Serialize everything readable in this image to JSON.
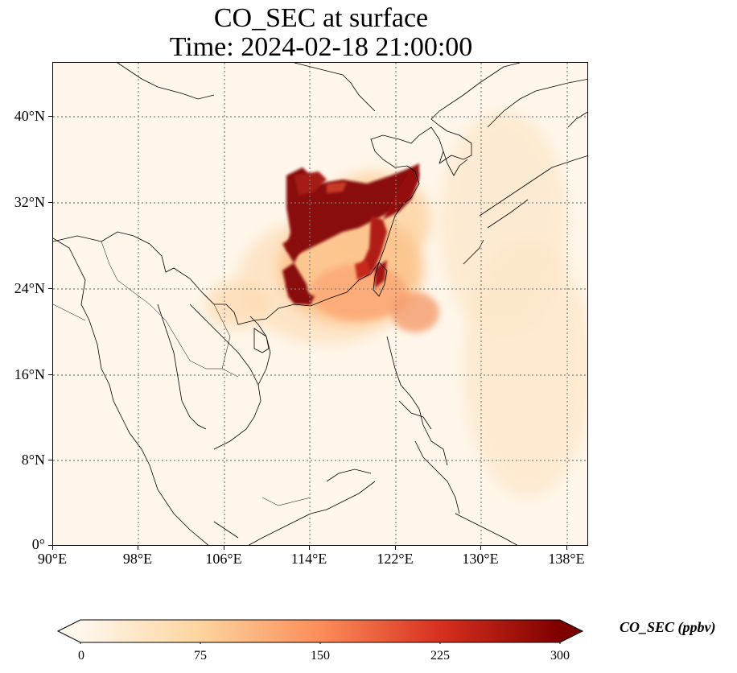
{
  "title": {
    "line1": "CO_SEC at surface",
    "line2": "Time: 2024-02-18 21:00:00"
  },
  "map": {
    "lon_range": [
      90,
      140
    ],
    "lat_range": [
      0,
      45
    ],
    "lat_ticks": [
      "40°N",
      "32°N",
      "24°N",
      "16°N",
      "8°N",
      "0°"
    ],
    "lon_ticks": [
      "90°E",
      "98°E",
      "106°E",
      "114°E",
      "122°E",
      "130°E",
      "138°E"
    ],
    "gridlines": "dotted grey",
    "coastlines": true,
    "country_borders": true,
    "high_concentration_region": "Eastern and central China (Yangtze River Delta, Pearl River Delta, Taiwan)"
  },
  "colorbar": {
    "label": "CO_SEC (ppbv)",
    "ticks": [
      "0",
      "75",
      "150",
      "225",
      "300"
    ],
    "range": [
      0,
      300
    ],
    "colormap": "OrRd",
    "extend": "both",
    "colors": [
      "#fff7ec",
      "#fdd49e",
      "#fc8d59",
      "#d7301f",
      "#7f0000"
    ]
  }
}
